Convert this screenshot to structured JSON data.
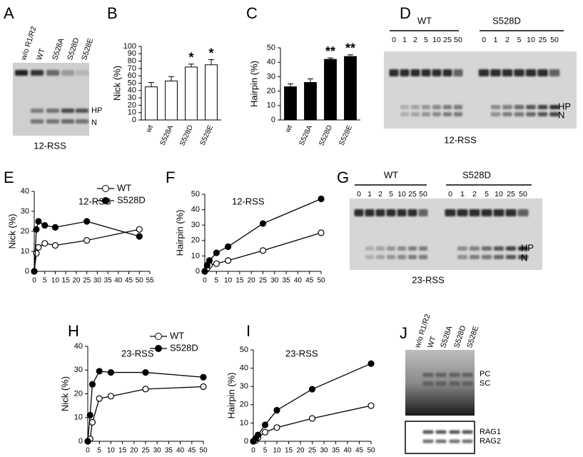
{
  "chart_data": [
    {
      "type": "bar",
      "panel": "B",
      "categories": [
        "wt",
        "S528A",
        "S528D",
        "S528E"
      ],
      "values": [
        45,
        53,
        72,
        75
      ],
      "errors": [
        6,
        6,
        4,
        7
      ],
      "annotations": [
        null,
        null,
        "*",
        "*"
      ],
      "color": "#ffffff",
      "ylabel": "Nick (%)",
      "ylim": [
        0,
        100
      ],
      "yticks": [
        0,
        10,
        20,
        30,
        40,
        50,
        60,
        70,
        80,
        90,
        100
      ]
    },
    {
      "type": "bar",
      "panel": "C",
      "categories": [
        "wt",
        "S528A",
        "S528D",
        "S528E"
      ],
      "values": [
        23,
        26,
        42,
        44
      ],
      "errors": [
        2,
        2.5,
        1,
        1.2
      ],
      "annotations": [
        null,
        null,
        "**",
        "**"
      ],
      "color": "#000000",
      "ylabel": "Hairpin (%)",
      "ylim": [
        0,
        50
      ],
      "yticks": [
        0,
        10,
        20,
        30,
        40,
        50
      ]
    },
    {
      "type": "line",
      "panel": "E",
      "annotation": "12-RSS",
      "ylabel": "Nick (%)",
      "x": [
        0,
        1,
        2,
        5,
        10,
        25,
        50
      ],
      "series": [
        {
          "name": "WT",
          "color": "#000000",
          "marker": "open",
          "values": [
            0,
            9,
            12,
            14,
            13,
            15.5,
            21
          ]
        },
        {
          "name": "S528D",
          "color": "#000000",
          "marker": "filled",
          "values": [
            0,
            21,
            25,
            23,
            22,
            25,
            17.5
          ]
        }
      ],
      "legend": "upper right",
      "xlim": [
        0,
        55
      ],
      "xticks": [
        0,
        5,
        10,
        15,
        20,
        25,
        30,
        35,
        40,
        45,
        50,
        55
      ],
      "ylim": [
        0,
        40
      ],
      "yticks": [
        0,
        10,
        20,
        30,
        40
      ]
    },
    {
      "type": "line",
      "panel": "F",
      "annotation": "12-RSS",
      "ylabel": "Hairpin (%)",
      "x": [
        0,
        1,
        2,
        5,
        10,
        25,
        50
      ],
      "series": [
        {
          "name": "WT",
          "color": "#000000",
          "marker": "open",
          "values": [
            0,
            2,
            4,
            5,
            7,
            13.5,
            25
          ]
        },
        {
          "name": "S528D",
          "color": "#000000",
          "marker": "filled",
          "values": [
            0,
            4,
            7,
            12,
            16,
            31,
            47
          ]
        }
      ],
      "xlim": [
        0,
        50
      ],
      "xticks": [
        0,
        5,
        10,
        15,
        20,
        25,
        30,
        35,
        40,
        45,
        50
      ],
      "ylim": [
        0,
        50
      ],
      "yticks": [
        0,
        10,
        20,
        30,
        40,
        50
      ]
    },
    {
      "type": "line",
      "panel": "H",
      "annotation": "23-RSS",
      "ylabel": "Nick (%)",
      "x": [
        0,
        1,
        2,
        5,
        10,
        25,
        50
      ],
      "series": [
        {
          "name": "WT",
          "color": "#000000",
          "marker": "open",
          "values": [
            0,
            1,
            8,
            18,
            19,
            22,
            23
          ]
        },
        {
          "name": "S528D",
          "color": "#000000",
          "marker": "filled",
          "values": [
            0,
            11,
            24,
            29.5,
            29,
            29,
            27
          ]
        }
      ],
      "legend": "upper right",
      "xlim": [
        0,
        50
      ],
      "xticks": [
        0,
        5,
        10,
        15,
        20,
        25,
        30,
        35,
        40,
        45,
        50
      ],
      "ylim": [
        0,
        40
      ],
      "yticks": [
        0,
        10,
        20,
        30,
        40
      ]
    },
    {
      "type": "line",
      "panel": "I",
      "annotation": "23-RSS",
      "ylabel": "Hairpin (%)",
      "x": [
        0,
        1,
        2,
        5,
        10,
        25,
        50
      ],
      "series": [
        {
          "name": "WT",
          "color": "#000000",
          "marker": "open",
          "values": [
            0,
            0.5,
            2,
            5,
            7.5,
            12.5,
            19.5
          ]
        },
        {
          "name": "S528D",
          "color": "#000000",
          "marker": "filled",
          "values": [
            0,
            1.5,
            3.5,
            9,
            17,
            28.5,
            42.5
          ]
        }
      ],
      "xlim": [
        0,
        50
      ],
      "xticks": [
        0,
        5,
        10,
        15,
        20,
        25,
        30,
        35,
        40,
        45,
        50
      ],
      "ylim": [
        0,
        50
      ],
      "yticks": [
        0,
        10,
        20,
        30,
        40,
        50
      ]
    }
  ],
  "gels": [
    {
      "panel": "A",
      "lanes": [
        "w/o R1/R2",
        "WT",
        "S528A",
        "S528D",
        "S528E"
      ],
      "band_labels": [
        "HP",
        "N"
      ],
      "caption": "12-RSS"
    },
    {
      "panel": "D",
      "groups": [
        {
          "name": "WT",
          "lanes": [
            "0",
            "1",
            "2",
            "5",
            "10",
            "25",
            "50"
          ]
        },
        {
          "name": "S528D",
          "lanes": [
            "0",
            "1",
            "2",
            "5",
            "10",
            "25",
            "50"
          ]
        }
      ],
      "band_labels": [
        "HP",
        "N"
      ],
      "caption": "12-RSS"
    },
    {
      "panel": "G",
      "groups": [
        {
          "name": "WT",
          "lanes": [
            "0",
            "1",
            "2",
            "5",
            "10",
            "25",
            "50"
          ]
        },
        {
          "name": "S528D",
          "lanes": [
            "0",
            "1",
            "2",
            "5",
            "10",
            "25",
            "50"
          ]
        }
      ],
      "band_labels": [
        "HP",
        "N"
      ],
      "caption": "23-RSS"
    },
    {
      "panel": "J",
      "lanes": [
        "w/o R1/R2",
        "WT",
        "S528A",
        "S528D",
        "S528E"
      ],
      "band_labels": [
        "PC",
        "SC"
      ],
      "lower_band_labels": [
        "RAG1",
        "RAG2"
      ]
    }
  ]
}
